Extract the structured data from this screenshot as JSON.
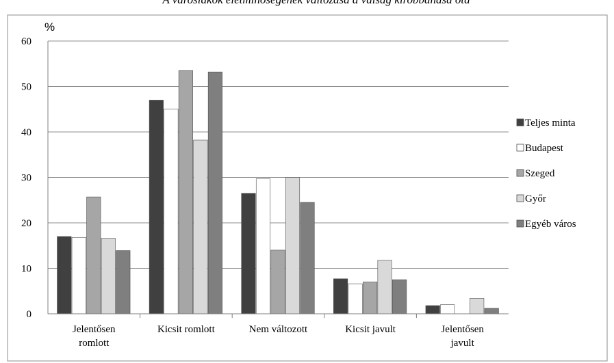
{
  "chart_data": {
    "type": "bar",
    "title": "A városlakók életminőségének változása a válság kirobbanása óta",
    "ylabel": "%",
    "xlabel": "",
    "ylim": [
      0,
      60
    ],
    "yticks": [
      0,
      10,
      20,
      30,
      40,
      50,
      60
    ],
    "grid": true,
    "legend_position": "right",
    "categories": [
      [
        "Jelentősen",
        "romlott"
      ],
      [
        "Kicsit romlott"
      ],
      [
        "Nem változott"
      ],
      [
        "Kicsit javult"
      ],
      [
        "Jelentősen",
        "javult"
      ]
    ],
    "series": [
      {
        "name": "Teljes minta",
        "color": "#404040",
        "values": [
          17.0,
          47.0,
          26.5,
          7.7,
          1.8
        ]
      },
      {
        "name": "Budapest",
        "color": "#ffffff",
        "values": [
          16.8,
          45.0,
          29.7,
          6.6,
          2.0
        ]
      },
      {
        "name": "Szeged",
        "color": "#a6a6a6",
        "values": [
          25.7,
          53.5,
          14.0,
          7.0,
          0.0
        ]
      },
      {
        "name": "Győr",
        "color": "#d9d9d9",
        "values": [
          16.6,
          38.2,
          30.0,
          11.8,
          3.4
        ]
      },
      {
        "name": "Egyéb város",
        "color": "#7f7f7f",
        "values": [
          13.9,
          53.2,
          24.5,
          7.5,
          1.2
        ]
      }
    ]
  }
}
